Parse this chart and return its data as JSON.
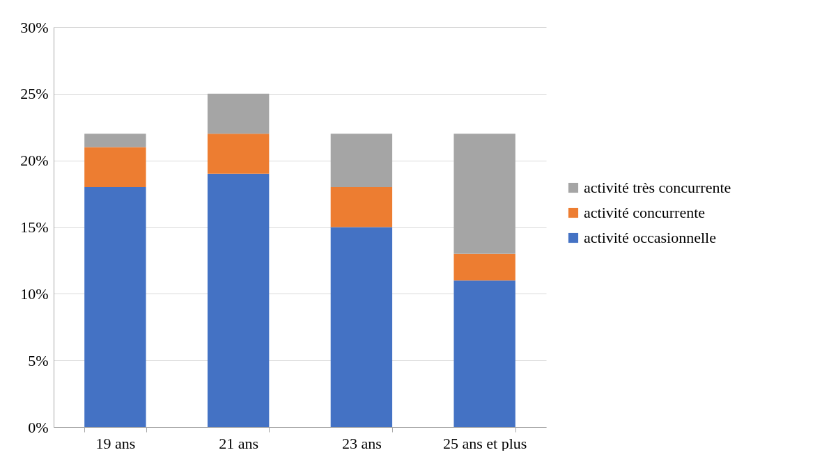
{
  "chart_data": {
    "type": "bar",
    "stacked": true,
    "categories": [
      "19 ans",
      "21 ans",
      "23 ans",
      "25 ans et plus"
    ],
    "series": [
      {
        "name": "activité occasionnelle",
        "color": "#4472c4",
        "values": [
          18,
          19,
          15,
          11
        ]
      },
      {
        "name": "activité concurrente",
        "color": "#ed7d31",
        "values": [
          3,
          3,
          3,
          2
        ]
      },
      {
        "name": "activité très concurrente",
        "color": "#a5a5a5",
        "values": [
          1,
          3,
          4,
          9
        ]
      }
    ],
    "ylim": [
      0,
      30
    ],
    "yticks": [
      {
        "value": 0,
        "label": "0%"
      },
      {
        "value": 5,
        "label": "5%"
      },
      {
        "value": 10,
        "label": "10%"
      },
      {
        "value": 15,
        "label": "15%"
      },
      {
        "value": 20,
        "label": "20%"
      },
      {
        "value": 25,
        "label": "25%"
      },
      {
        "value": 30,
        "label": "30%"
      }
    ],
    "grid": "y",
    "legend": "right"
  }
}
